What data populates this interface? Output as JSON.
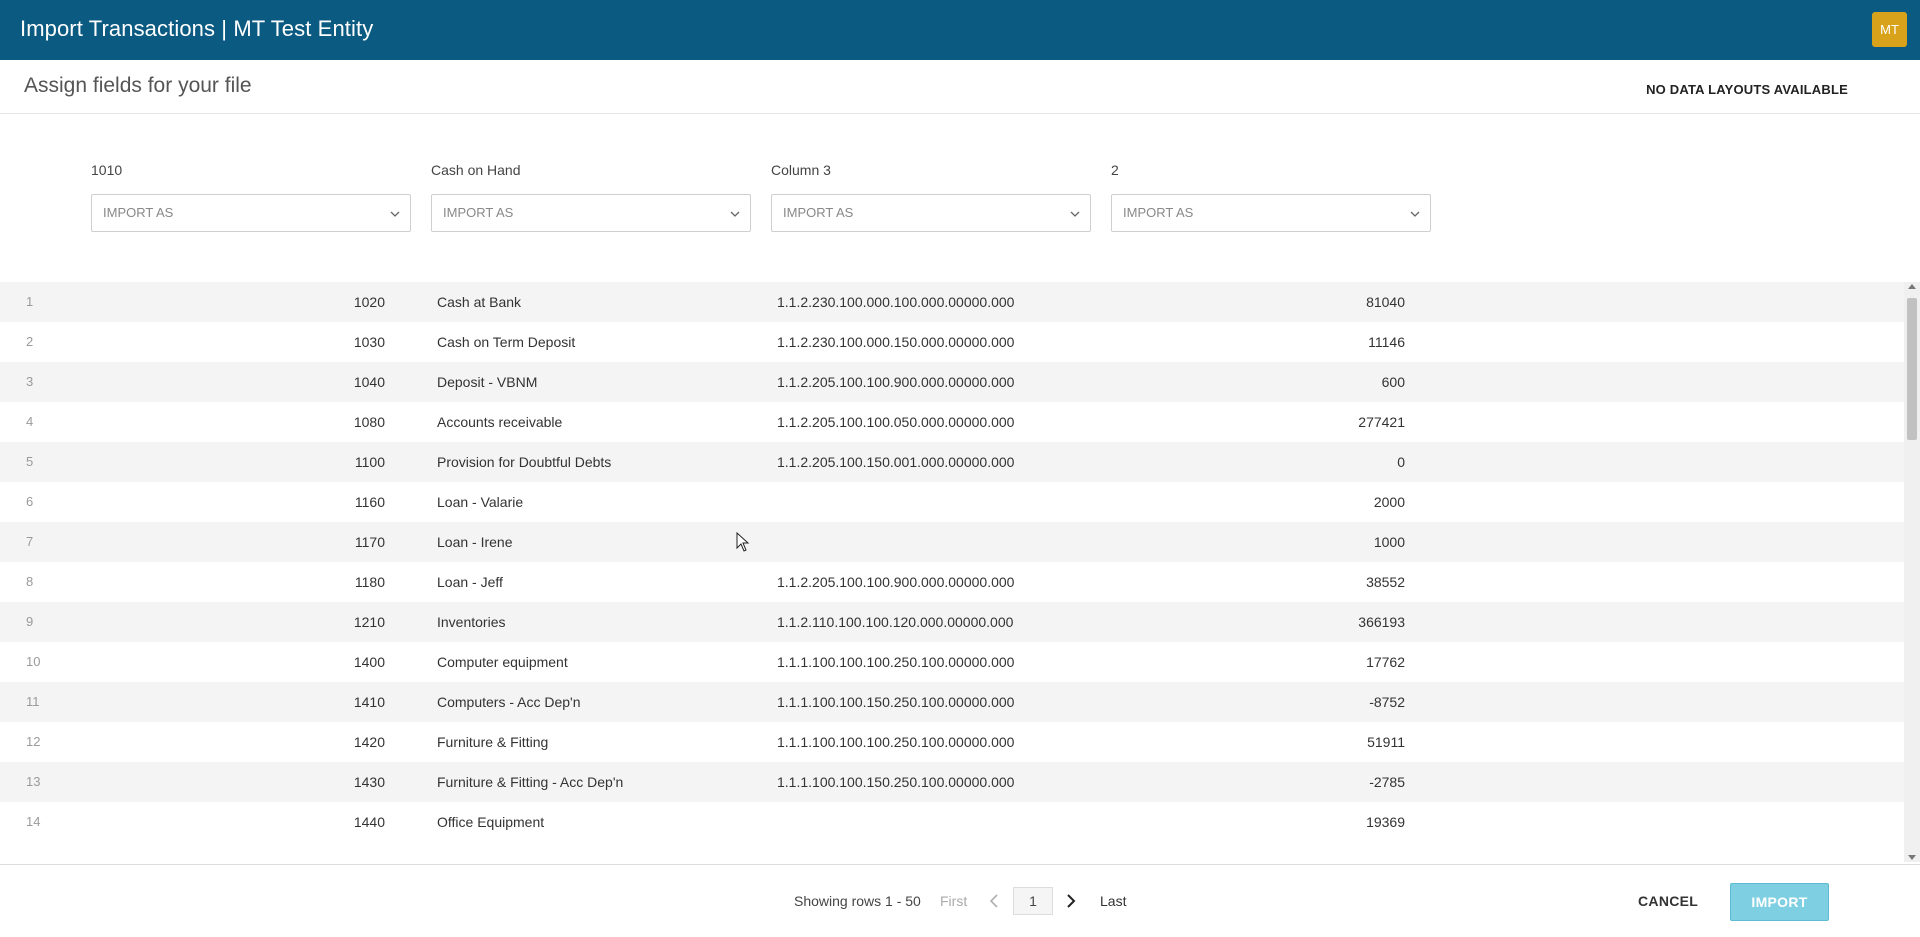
{
  "header": {
    "title": "Import Transactions | MT Test Entity",
    "avatar_initials": "MT",
    "avatar_color": "#d9a21b",
    "bar_color": "#0b5a82"
  },
  "subheader": {
    "title": "Assign fields for your file",
    "layouts_text": "NO DATA LAYOUTS AVAILABLE"
  },
  "mapping": [
    {
      "label": "1010",
      "placeholder": "IMPORT AS"
    },
    {
      "label": "Cash on Hand",
      "placeholder": "IMPORT AS"
    },
    {
      "label": "Column 3",
      "placeholder": "IMPORT AS"
    },
    {
      "label": "2",
      "placeholder": "IMPORT AS"
    }
  ],
  "rows": [
    {
      "n": "1",
      "code": "1020",
      "name": "Cash at Bank",
      "acct": "1.1.2.230.100.000.100.000.00000.000",
      "amt": "81040"
    },
    {
      "n": "2",
      "code": "1030",
      "name": "Cash on Term Deposit",
      "acct": "1.1.2.230.100.000.150.000.00000.000",
      "amt": "11146"
    },
    {
      "n": "3",
      "code": "1040",
      "name": "Deposit - VBNM",
      "acct": "1.1.2.205.100.100.900.000.00000.000",
      "amt": "600"
    },
    {
      "n": "4",
      "code": "1080",
      "name": "Accounts receivable",
      "acct": "1.1.2.205.100.100.050.000.00000.000",
      "amt": "277421"
    },
    {
      "n": "5",
      "code": "1100",
      "name": "Provision for Doubtful Debts",
      "acct": "1.1.2.205.100.150.001.000.00000.000",
      "amt": "0"
    },
    {
      "n": "6",
      "code": "1160",
      "name": "Loan - Valarie",
      "acct": "",
      "amt": "2000"
    },
    {
      "n": "7",
      "code": "1170",
      "name": "Loan - Irene",
      "acct": "",
      "amt": "1000"
    },
    {
      "n": "8",
      "code": "1180",
      "name": "Loan - Jeff",
      "acct": "1.1.2.205.100.100.900.000.00000.000",
      "amt": "38552"
    },
    {
      "n": "9",
      "code": "1210",
      "name": "Inventories",
      "acct": "1.1.2.110.100.100.120.000.00000.000",
      "amt": "366193"
    },
    {
      "n": "10",
      "code": "1400",
      "name": "Computer equipment",
      "acct": "1.1.1.100.100.100.250.100.00000.000",
      "amt": "17762"
    },
    {
      "n": "11",
      "code": "1410",
      "name": "Computers - Acc Dep'n",
      "acct": "1.1.1.100.100.150.250.100.00000.000",
      "amt": "-8752"
    },
    {
      "n": "12",
      "code": "1420",
      "name": "Furniture & Fitting",
      "acct": "1.1.1.100.100.100.250.100.00000.000",
      "amt": "51911"
    },
    {
      "n": "13",
      "code": "1430",
      "name": "Furniture & Fitting - Acc Dep'n",
      "acct": "1.1.1.100.100.150.250.100.00000.000",
      "amt": "-2785"
    },
    {
      "n": "14",
      "code": "1440",
      "name": "Office Equipment",
      "acct": "",
      "amt": "19369"
    }
  ],
  "footer": {
    "rows_info": "Showing rows 1 - 50",
    "first_label": "First",
    "current_page": "1",
    "last_label": "Last",
    "cancel_label": "CANCEL",
    "import_label": "IMPORT"
  },
  "icons": {
    "select_chevron": "chevron-down-icon",
    "prev": "chevron-left-icon",
    "next": "chevron-right-icon",
    "cursor": "mouse-pointer-icon"
  }
}
